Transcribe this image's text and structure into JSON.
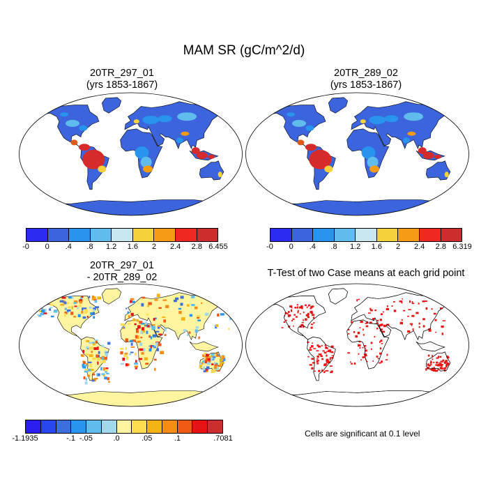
{
  "title": "MAM SR (gC/m^2/d)",
  "panels": [
    {
      "line1": "20TR_297_01",
      "line2": "(yrs 1853-1867)"
    },
    {
      "line1": "20TR_289_02",
      "line2": "(yrs 1853-1867)"
    },
    {
      "line1": "20TR_297_01",
      "line2": "- 20TR_289_02"
    },
    {
      "line1": "T-Test of two Case means at each grid point",
      "line2": ""
    }
  ],
  "colorbars": [
    {
      "labels": [
        "-0",
        "0",
        ".4",
        ".8",
        "1.2",
        "1.6",
        "2",
        "2.4",
        "2.8",
        "6.455"
      ],
      "colors": [
        "#2a2af0",
        "#3c64dc",
        "#2894ee",
        "#5fbcec",
        "#c8e6f0",
        "#f5d23c",
        "#f59b14",
        "#f0281e",
        "#cd2d2d"
      ]
    },
    {
      "labels": [
        "-0",
        "0",
        ".4",
        ".8",
        "1.2",
        "1.6",
        "2",
        "2.4",
        "2.8",
        "6.319"
      ],
      "colors": [
        "#2a2af0",
        "#3c64dc",
        "#2894ee",
        "#5fbcec",
        "#c8e6f0",
        "#f5d23c",
        "#f59b14",
        "#f0281e",
        "#cd2d2d"
      ]
    },
    {
      "labels": [
        "-1.1935",
        "-.1",
        "-.05",
        ".0",
        ".05",
        ".1",
        ".7081"
      ],
      "colors": [
        "#2a1ef0",
        "#2846f0",
        "#3c6edc",
        "#2894ee",
        "#5fbcec",
        "#a0d8ec",
        "#fff5a0",
        "#ffdc50",
        "#f5b414",
        "#f58c14",
        "#f05a14",
        "#e61414",
        "#cd2d2d"
      ]
    }
  ],
  "significance_note": "Cells are significant at 0.1 level",
  "colors": {
    "land_mean": "#3c64dc",
    "tropics_mean": "#d72a2a",
    "diff_base": "#fff5a0",
    "ttest_red": "#ee1111"
  }
}
